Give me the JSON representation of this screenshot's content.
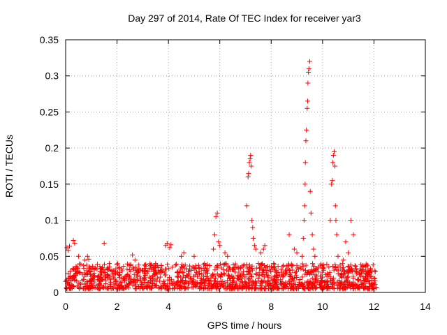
{
  "chart_data": {
    "type": "scatter",
    "title": "Day 297 of 2014, Rate Of TEC Index for receiver yar3",
    "xlabel": "GPS time / hours",
    "ylabel": "ROTI / TECUs",
    "xlim": [
      0,
      14
    ],
    "ylim": [
      0,
      0.35
    ],
    "x_ticks": [
      {
        "value": 0,
        "label": "0"
      },
      {
        "value": 2,
        "label": "2"
      },
      {
        "value": 4,
        "label": "4"
      },
      {
        "value": 6,
        "label": "6"
      },
      {
        "value": 8,
        "label": "8"
      },
      {
        "value": 10,
        "label": "10"
      },
      {
        "value": 12,
        "label": "12"
      },
      {
        "value": 14,
        "label": "14"
      }
    ],
    "y_ticks": [
      {
        "value": 0,
        "label": "0"
      },
      {
        "value": 0.05,
        "label": "0.05"
      },
      {
        "value": 0.1,
        "label": "0.1"
      },
      {
        "value": 0.15,
        "label": "0.15"
      },
      {
        "value": 0.2,
        "label": "0.2"
      },
      {
        "value": 0.25,
        "label": "0.25"
      },
      {
        "value": 0.3,
        "label": "0.3"
      },
      {
        "value": 0.35,
        "label": "0.35"
      }
    ],
    "grid": true,
    "marker": "+",
    "series_color": "#ff0000",
    "series": [
      {
        "name": "ROTI",
        "points": [
          [
            0.05,
            0.062
          ],
          [
            0.1,
            0.058
          ],
          [
            0.15,
            0.064
          ],
          [
            0.3,
            0.072
          ],
          [
            0.35,
            0.068
          ],
          [
            0.5,
            0.05
          ],
          [
            0.75,
            0.045
          ],
          [
            0.85,
            0.05
          ],
          [
            0.9,
            0.046
          ],
          [
            1.5,
            0.068
          ],
          [
            1.7,
            0.04
          ],
          [
            2.2,
            0.03
          ],
          [
            2.6,
            0.052
          ],
          [
            2.7,
            0.045
          ],
          [
            3.0,
            0.03
          ],
          [
            3.5,
            0.04
          ],
          [
            3.9,
            0.065
          ],
          [
            3.95,
            0.068
          ],
          [
            4.05,
            0.062
          ],
          [
            4.1,
            0.066
          ],
          [
            4.5,
            0.05
          ],
          [
            4.6,
            0.055
          ],
          [
            5.0,
            0.05
          ],
          [
            5.75,
            0.06
          ],
          [
            5.8,
            0.08
          ],
          [
            5.85,
            0.105
          ],
          [
            5.9,
            0.11
          ],
          [
            5.95,
            0.07
          ],
          [
            6.0,
            0.065
          ],
          [
            6.2,
            0.055
          ],
          [
            6.3,
            0.05
          ],
          [
            7.05,
            0.12
          ],
          [
            7.1,
            0.16
          ],
          [
            7.12,
            0.165
          ],
          [
            7.15,
            0.18
          ],
          [
            7.18,
            0.185
          ],
          [
            7.2,
            0.19
          ],
          [
            7.22,
            0.175
          ],
          [
            7.25,
            0.1
          ],
          [
            7.28,
            0.09
          ],
          [
            7.3,
            0.075
          ],
          [
            7.35,
            0.065
          ],
          [
            7.4,
            0.06
          ],
          [
            7.5,
            0.04
          ],
          [
            7.6,
            0.055
          ],
          [
            7.7,
            0.06
          ],
          [
            7.75,
            0.065
          ],
          [
            8.7,
            0.08
          ],
          [
            8.9,
            0.06
          ],
          [
            9.0,
            0.055
          ],
          [
            9.2,
            0.05
          ],
          [
            9.25,
            0.075
          ],
          [
            9.28,
            0.1
          ],
          [
            9.3,
            0.12
          ],
          [
            9.32,
            0.15
          ],
          [
            9.33,
            0.18
          ],
          [
            9.35,
            0.21
          ],
          [
            9.37,
            0.225
          ],
          [
            9.4,
            0.255
          ],
          [
            9.42,
            0.265
          ],
          [
            9.43,
            0.29
          ],
          [
            9.45,
            0.305
          ],
          [
            9.47,
            0.31
          ],
          [
            9.5,
            0.32
          ],
          [
            9.52,
            0.14
          ],
          [
            9.55,
            0.11
          ],
          [
            9.6,
            0.08
          ],
          [
            9.65,
            0.06
          ],
          [
            9.7,
            0.05
          ],
          [
            10.3,
            0.1
          ],
          [
            10.35,
            0.15
          ],
          [
            10.38,
            0.155
          ],
          [
            10.4,
            0.18
          ],
          [
            10.42,
            0.19
          ],
          [
            10.45,
            0.195
          ],
          [
            10.48,
            0.175
          ],
          [
            10.5,
            0.12
          ],
          [
            10.52,
            0.1
          ],
          [
            10.55,
            0.08
          ],
          [
            10.6,
            0.05
          ],
          [
            10.8,
            0.045
          ],
          [
            10.9,
            0.07
          ],
          [
            11.0,
            0.055
          ],
          [
            11.1,
            0.1
          ],
          [
            11.2,
            0.08
          ],
          [
            11.5,
            0.03
          ],
          [
            11.8,
            0.025
          ],
          [
            12.0,
            0.02
          ]
        ],
        "background_band": {
          "x_range": [
            0,
            12.1
          ],
          "typical": [
            0.005,
            0.03
          ],
          "dense": true
        }
      }
    ]
  }
}
